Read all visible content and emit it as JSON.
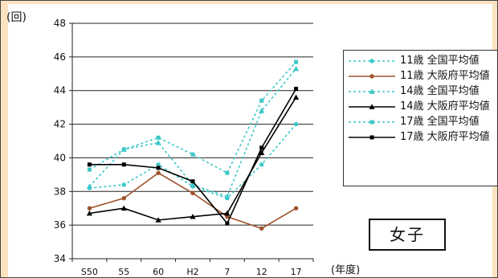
{
  "chart_data": {
    "type": "line",
    "ylabel": "(回)",
    "xlabel": "(年度)",
    "categories": [
      "S50",
      "55",
      "60",
      "H2",
      "7",
      "12",
      "17"
    ],
    "ylim": [
      34,
      48
    ],
    "yticks": [
      34,
      36,
      38,
      40,
      42,
      44,
      46,
      48
    ],
    "grid": true,
    "legend": "right",
    "series": [
      {
        "name": "11歳 全国平均値",
        "color": "#3cc8c8",
        "dash": true,
        "marker": "circle",
        "values": [
          38.2,
          38.4,
          39.6,
          38.3,
          37.6,
          39.6,
          42.0
        ]
      },
      {
        "name": "11歳 大阪府平均値",
        "color": "#a0522d",
        "dash": false,
        "marker": "circle",
        "values": [
          37.0,
          37.6,
          39.1,
          37.9,
          36.5,
          35.8,
          37.0
        ]
      },
      {
        "name": "14歳 全国平均値",
        "color": "#3cc8c8",
        "dash": true,
        "marker": "triangle",
        "values": [
          38.3,
          40.5,
          40.9,
          38.4,
          37.7,
          42.8,
          45.3
        ]
      },
      {
        "name": "14歳 大阪府平均値",
        "color": "#000000",
        "dash": false,
        "marker": "triangle",
        "values": [
          36.7,
          37.0,
          36.3,
          36.5,
          36.7,
          40.3,
          43.6
        ]
      },
      {
        "name": "17歳 全国平均値",
        "color": "#3cc8c8",
        "dash": true,
        "marker": "square",
        "values": [
          39.3,
          40.5,
          41.2,
          40.2,
          39.1,
          43.4,
          45.7
        ]
      },
      {
        "name": "17歳 大阪府平均値",
        "color": "#000000",
        "dash": false,
        "marker": "square",
        "values": [
          39.6,
          39.6,
          39.4,
          38.6,
          36.1,
          40.6,
          44.1
        ]
      }
    ],
    "tag": "女子"
  }
}
